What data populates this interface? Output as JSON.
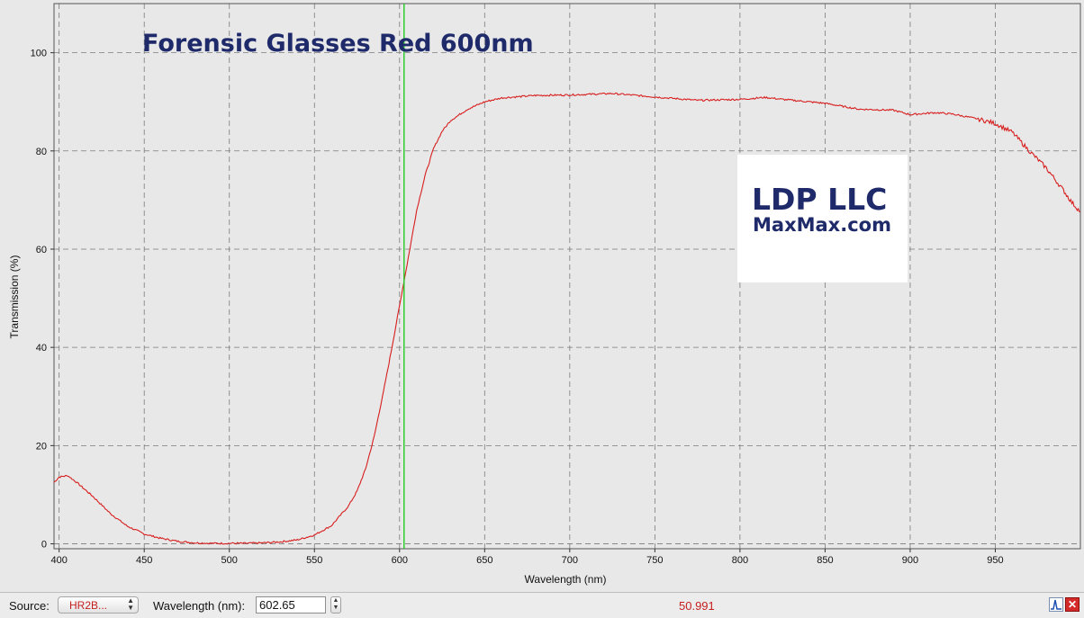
{
  "chart_data": {
    "type": "line",
    "title": "Forensic Glasses Red 600nm",
    "xlabel": "Wavelength (nm)",
    "ylabel": "Transmission (%)",
    "xlim": [
      397,
      1000
    ],
    "ylim": [
      -1,
      110
    ],
    "x_ticks": [
      400,
      450,
      500,
      550,
      600,
      650,
      700,
      750,
      800,
      850,
      900,
      950
    ],
    "y_ticks": [
      0,
      20,
      40,
      60,
      80,
      100
    ],
    "grid": true,
    "cursor_wavelength": 602.65,
    "line_color": "#d81e1e",
    "cursor_color": "#22cc22",
    "series": [
      {
        "points": [
          [
            397,
            12.5
          ],
          [
            400,
            13.6
          ],
          [
            405,
            13.9
          ],
          [
            410,
            12.6
          ],
          [
            420,
            9.6
          ],
          [
            430,
            6.2
          ],
          [
            440,
            3.6
          ],
          [
            450,
            2.0
          ],
          [
            460,
            1.1
          ],
          [
            470,
            0.5
          ],
          [
            480,
            0.2
          ],
          [
            490,
            0.1
          ],
          [
            500,
            0.1
          ],
          [
            510,
            0.1
          ],
          [
            520,
            0.2
          ],
          [
            530,
            0.4
          ],
          [
            540,
            0.8
          ],
          [
            550,
            1.8
          ],
          [
            560,
            3.7
          ],
          [
            570,
            7.7
          ],
          [
            575,
            10.7
          ],
          [
            580,
            15.2
          ],
          [
            585,
            21.7
          ],
          [
            590,
            30.0
          ],
          [
            595,
            39.0
          ],
          [
            600,
            48.5
          ],
          [
            605,
            58.0
          ],
          [
            610,
            67.8
          ],
          [
            615,
            75.0
          ],
          [
            620,
            80.5
          ],
          [
            625,
            84.0
          ],
          [
            630,
            86.2
          ],
          [
            640,
            88.5
          ],
          [
            650,
            90.0
          ],
          [
            660,
            90.8
          ],
          [
            680,
            91.3
          ],
          [
            700,
            91.4
          ],
          [
            725,
            91.7
          ],
          [
            750,
            91.0
          ],
          [
            775,
            90.3
          ],
          [
            800,
            90.5
          ],
          [
            815,
            90.9
          ],
          [
            825,
            90.5
          ],
          [
            850,
            89.7
          ],
          [
            870,
            88.5
          ],
          [
            890,
            88.3
          ],
          [
            900,
            87.4
          ],
          [
            915,
            87.8
          ],
          [
            925,
            87.5
          ],
          [
            940,
            86.5
          ],
          [
            950,
            85.6
          ],
          [
            960,
            83.8
          ],
          [
            970,
            80.0
          ],
          [
            980,
            76.5
          ],
          [
            990,
            72.0
          ],
          [
            995,
            69.5
          ],
          [
            1000,
            67.6
          ]
        ]
      }
    ]
  },
  "logo": {
    "line1": "LDP LLC",
    "line2": "MaxMax.com"
  },
  "toolbar": {
    "source_label": "Source:",
    "source_value": "HR2B...",
    "wavelength_label": "Wavelength (nm):",
    "wavelength_value": "602.65",
    "readout_value": "50.991"
  }
}
